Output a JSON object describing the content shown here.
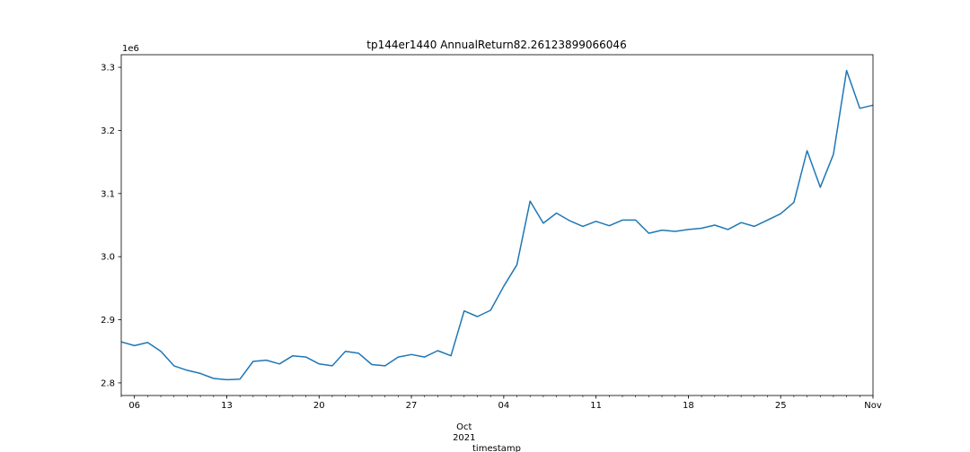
{
  "chart_data": {
    "type": "line",
    "title": "tp144er1440 AnnualReturn82.26123899066046",
    "xlabel": "timestamp",
    "ylabel": "",
    "y_offset_label": "1e6",
    "grid": false,
    "legend": "none",
    "line_color": "#1f77b4",
    "x_range": [
      "2021-09-05",
      "2021-11-01"
    ],
    "ylim": [
      2.78,
      3.32
    ],
    "y_ticks": [
      2.8,
      2.9,
      3.0,
      3.1,
      3.2,
      3.3
    ],
    "y_tick_labels": [
      "2.8",
      "2.9",
      "3.0",
      "3.1",
      "3.2",
      "3.3"
    ],
    "x_ticks": [
      {
        "date": "2021-09-06",
        "label": "06"
      },
      {
        "date": "2021-09-13",
        "label": "13"
      },
      {
        "date": "2021-09-20",
        "label": "20"
      },
      {
        "date": "2021-09-27",
        "label": "27"
      },
      {
        "date": "2021-10-04",
        "label": "04"
      },
      {
        "date": "2021-10-11",
        "label": "11"
      },
      {
        "date": "2021-10-18",
        "label": "18"
      },
      {
        "date": "2021-10-25",
        "label": "25"
      },
      {
        "date": "2021-11-01",
        "label": "Nov"
      }
    ],
    "x_secondary_label": {
      "date": "2021-10-01",
      "line1": "Oct",
      "line2": "2021"
    },
    "series": [
      {
        "x": [
          "2021-09-05",
          "2021-09-06",
          "2021-09-07",
          "2021-09-08",
          "2021-09-09",
          "2021-09-10",
          "2021-09-11",
          "2021-09-12",
          "2021-09-13",
          "2021-09-14",
          "2021-09-15",
          "2021-09-16",
          "2021-09-17",
          "2021-09-18",
          "2021-09-19",
          "2021-09-20",
          "2021-09-21",
          "2021-09-22",
          "2021-09-23",
          "2021-09-24",
          "2021-09-25",
          "2021-09-26",
          "2021-09-27",
          "2021-09-28",
          "2021-09-29",
          "2021-09-30",
          "2021-10-01",
          "2021-10-02",
          "2021-10-03",
          "2021-10-04",
          "2021-10-05",
          "2021-10-06",
          "2021-10-07",
          "2021-10-08",
          "2021-10-09",
          "2021-10-10",
          "2021-10-11",
          "2021-10-12",
          "2021-10-13",
          "2021-10-14",
          "2021-10-15",
          "2021-10-16",
          "2021-10-17",
          "2021-10-18",
          "2021-10-19",
          "2021-10-20",
          "2021-10-21",
          "2021-10-22",
          "2021-10-23",
          "2021-10-24",
          "2021-10-25",
          "2021-10-26",
          "2021-10-27",
          "2021-10-28",
          "2021-10-29",
          "2021-10-30",
          "2021-10-31",
          "2021-11-01"
        ],
        "values": [
          2.865,
          2.859,
          2.864,
          2.85,
          2.827,
          2.82,
          2.815,
          2.807,
          2.805,
          2.806,
          2.834,
          2.836,
          2.83,
          2.843,
          2.841,
          2.83,
          2.827,
          2.85,
          2.847,
          2.829,
          2.827,
          2.841,
          2.845,
          2.841,
          2.851,
          2.843,
          2.914,
          2.905,
          2.915,
          2.953,
          2.987,
          3.088,
          3.053,
          3.069,
          3.057,
          3.048,
          3.056,
          3.049,
          3.058,
          3.058,
          3.037,
          3.042,
          3.04,
          3.043,
          3.045,
          3.05,
          3.043,
          3.054,
          3.048,
          3.058,
          3.068,
          3.086,
          3.168,
          3.11,
          3.162,
          3.295,
          3.235,
          3.24
        ]
      }
    ]
  }
}
